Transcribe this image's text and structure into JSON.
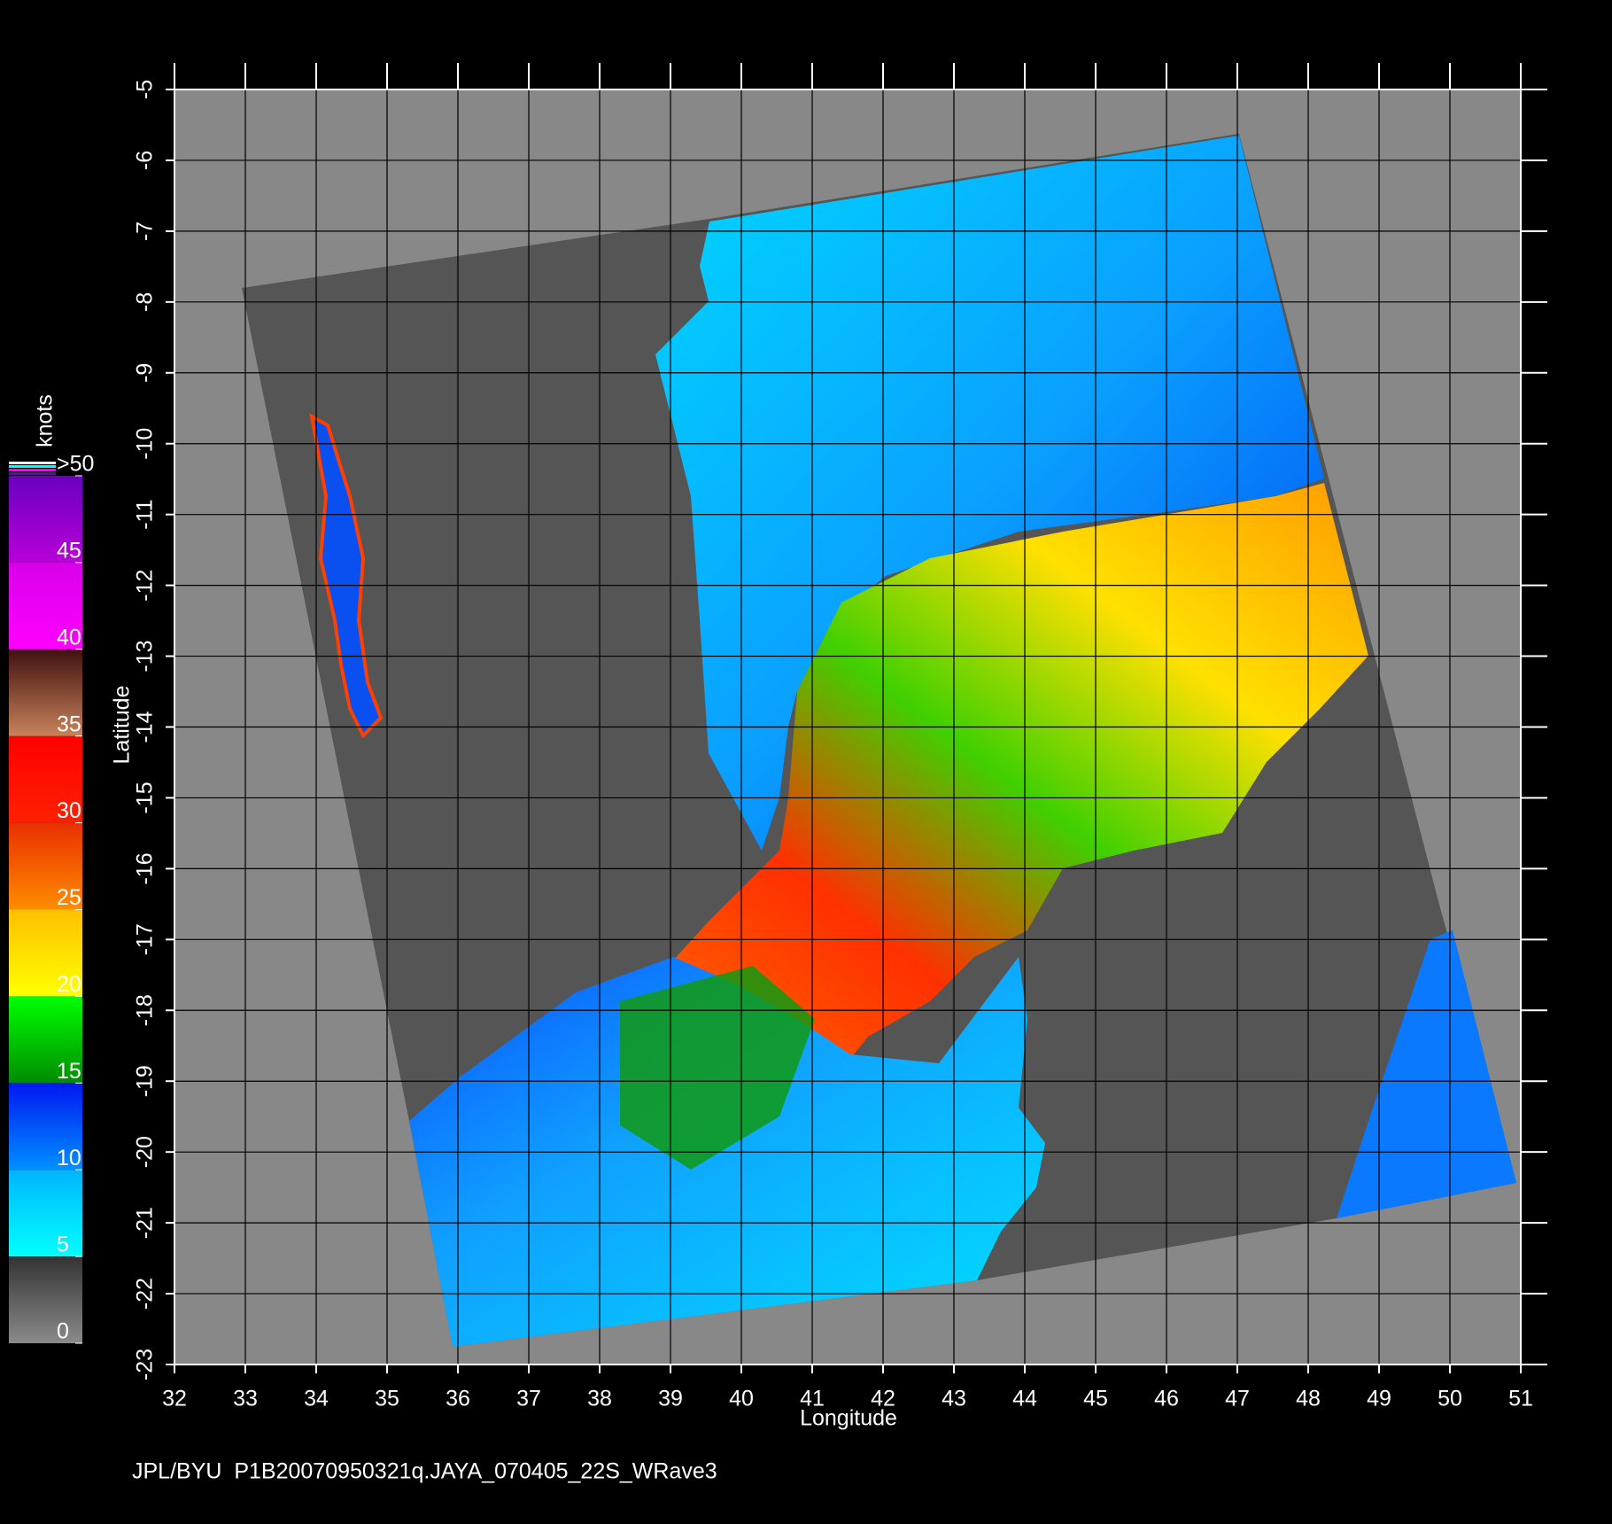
{
  "chart_data": {
    "type": "map",
    "xlabel": "Longitude",
    "ylabel": "Latitude",
    "xlim": [
      32,
      51
    ],
    "ylim": [
      -23,
      -5
    ],
    "xticks": [
      32,
      33,
      34,
      35,
      36,
      37,
      38,
      39,
      40,
      41,
      42,
      43,
      44,
      45,
      46,
      47,
      48,
      49,
      50,
      51
    ],
    "yticks": [
      -5,
      -6,
      -7,
      -8,
      -9,
      -10,
      -11,
      -12,
      -13,
      -14,
      -15,
      -16,
      -17,
      -18,
      -19,
      -20,
      -21,
      -22,
      -23
    ],
    "grid": true,
    "colorbar": {
      "label": "knots",
      "ticks": [
        0,
        5,
        10,
        15,
        20,
        25,
        30,
        35,
        40,
        45,
        {
          "value": 50,
          "label": ">50"
        }
      ],
      "colors": [
        [
          "#8a8a8a",
          "#333333"
        ],
        [
          "#00ffff",
          "#00b4ff"
        ],
        [
          "#0090ff",
          "#0018f0"
        ],
        [
          "#008c00",
          "#00ff00"
        ],
        [
          "#ffff00",
          "#ffc000"
        ],
        [
          "#ff8c00",
          "#e83000"
        ],
        [
          "#ff2000",
          "#ff0000"
        ],
        [
          "#c8825a",
          "#401010"
        ],
        [
          "#ff00ff",
          "#d800e8"
        ],
        [
          "#b800d8",
          "#6a00c0"
        ]
      ]
    }
  },
  "footer": "JPL/BYU  P1B20070950321q.JAYA_070405_22S_WRave3"
}
